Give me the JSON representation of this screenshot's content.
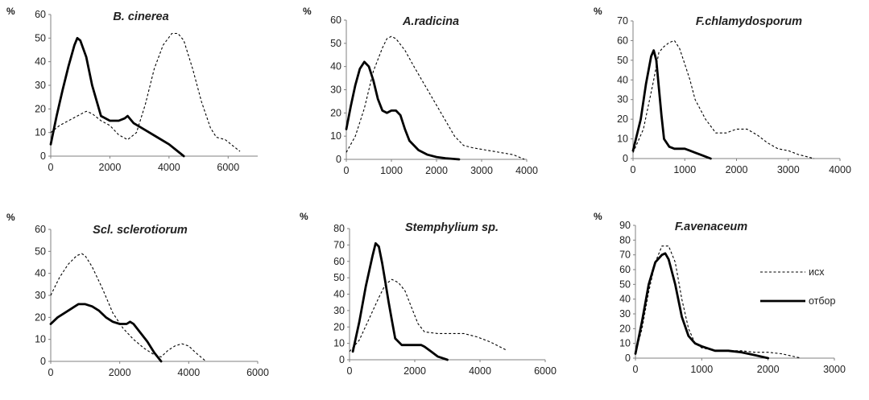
{
  "legend": {
    "items": [
      {
        "label": "исх",
        "style": "dotted"
      },
      {
        "label": "отбор",
        "style": "solid"
      }
    ]
  },
  "styles": {
    "line_color": "#000000",
    "background": "#ffffff"
  },
  "chart_data": [
    {
      "type": "line",
      "title": "B. cinerea",
      "ylabel": "%",
      "xlim": [
        0,
        7000
      ],
      "xticks": [
        0,
        2000,
        4000,
        6000
      ],
      "ylim": [
        0,
        60
      ],
      "yticks": [
        0,
        10,
        20,
        30,
        40,
        50,
        60
      ],
      "series": [
        {
          "name": "исх",
          "style": "dotted",
          "x": [
            0,
            300,
            600,
            900,
            1200,
            1400,
            1700,
            2000,
            2300,
            2600,
            2900,
            3200,
            3500,
            3800,
            4100,
            4300,
            4500,
            4800,
            5100,
            5400,
            5600,
            5900,
            6200,
            6400
          ],
          "y": [
            10,
            13,
            15,
            17,
            19,
            18,
            15,
            13,
            9,
            7,
            10,
            22,
            37,
            47,
            52,
            52,
            49,
            37,
            23,
            12,
            8,
            7,
            4,
            2
          ]
        },
        {
          "name": "отбор",
          "style": "solid",
          "x": [
            0,
            200,
            400,
            600,
            800,
            900,
            1000,
            1200,
            1400,
            1700,
            2000,
            2300,
            2500,
            2600,
            2800,
            3200,
            3600,
            4000,
            4300,
            4500
          ],
          "y": [
            5,
            17,
            28,
            38,
            47,
            50,
            49,
            42,
            30,
            17,
            15,
            15,
            16,
            17,
            14,
            11,
            8,
            5,
            2,
            0
          ]
        }
      ]
    },
    {
      "type": "line",
      "title": "A.radicina",
      "ylabel": "%",
      "xlim": [
        0,
        4000
      ],
      "xticks": [
        0,
        1000,
        2000,
        3000,
        4000
      ],
      "ylim": [
        0,
        60
      ],
      "yticks": [
        0,
        10,
        20,
        30,
        40,
        50,
        60
      ],
      "series": [
        {
          "name": "исх",
          "style": "dotted",
          "x": [
            0,
            200,
            400,
            600,
            800,
            900,
            1000,
            1100,
            1300,
            1500,
            1800,
            2100,
            2400,
            2600,
            2800,
            3100,
            3400,
            3700,
            3950
          ],
          "y": [
            3,
            10,
            22,
            38,
            48,
            52,
            53,
            52,
            47,
            40,
            30,
            20,
            10,
            6,
            5,
            4,
            3,
            2,
            0
          ]
        },
        {
          "name": "отбор",
          "style": "solid",
          "x": [
            0,
            100,
            200,
            300,
            400,
            500,
            600,
            700,
            800,
            900,
            1000,
            1100,
            1200,
            1300,
            1400,
            1600,
            1800,
            2000,
            2200,
            2500
          ],
          "y": [
            13,
            23,
            32,
            39,
            42,
            40,
            34,
            26,
            21,
            20,
            21,
            21,
            19,
            13,
            8,
            4,
            2,
            1,
            0.5,
            0
          ]
        }
      ]
    },
    {
      "type": "line",
      "title": "F.chlamydosporum",
      "ylabel": "%",
      "xlim": [
        0,
        4000
      ],
      "xticks": [
        0,
        1000,
        2000,
        3000,
        4000
      ],
      "ylim": [
        0,
        70
      ],
      "yticks": [
        0,
        10,
        20,
        30,
        40,
        50,
        60,
        70
      ],
      "series": [
        {
          "name": "исх",
          "style": "dotted",
          "x": [
            0,
            200,
            400,
            500,
            600,
            700,
            800,
            900,
            1000,
            1100,
            1200,
            1400,
            1600,
            1800,
            2000,
            2200,
            2400,
            2600,
            2800,
            3000,
            3200,
            3500
          ],
          "y": [
            3,
            15,
            40,
            54,
            57,
            59,
            60,
            56,
            48,
            40,
            30,
            20,
            13,
            13,
            15,
            15,
            12,
            8,
            5,
            4,
            2,
            0
          ]
        },
        {
          "name": "отбор",
          "style": "solid",
          "x": [
            0,
            150,
            250,
            350,
            400,
            450,
            500,
            550,
            600,
            700,
            800,
            900,
            1000,
            1100,
            1200,
            1300,
            1400,
            1500
          ],
          "y": [
            4,
            20,
            38,
            52,
            55,
            50,
            36,
            22,
            10,
            6,
            5,
            5,
            5,
            4,
            3,
            2,
            1,
            0
          ]
        }
      ]
    },
    {
      "type": "line",
      "title": "Scl. sclerotiorum",
      "ylabel": "%",
      "xlim": [
        0,
        6000
      ],
      "xticks": [
        0,
        2000,
        4000,
        6000
      ],
      "ylim": [
        0,
        60
      ],
      "yticks": [
        0,
        10,
        20,
        30,
        40,
        50,
        60
      ],
      "series": [
        {
          "name": "исх",
          "style": "dotted",
          "x": [
            0,
            250,
            500,
            750,
            900,
            1000,
            1200,
            1500,
            1800,
            2100,
            2400,
            2700,
            3000,
            3200,
            3400,
            3600,
            3800,
            4000,
            4200,
            4500
          ],
          "y": [
            30,
            38,
            44,
            48,
            49,
            48,
            43,
            33,
            22,
            15,
            10,
            6,
            3,
            2,
            5,
            7,
            8,
            7,
            4,
            0
          ]
        },
        {
          "name": "отбор",
          "style": "solid",
          "x": [
            0,
            200,
            400,
            600,
            800,
            1000,
            1200,
            1400,
            1600,
            1800,
            2000,
            2200,
            2300,
            2400,
            2600,
            2800,
            3000,
            3200
          ],
          "y": [
            17,
            20,
            22,
            24,
            26,
            26,
            25,
            23,
            20,
            18,
            17,
            17,
            18,
            17,
            13,
            9,
            4,
            0
          ]
        }
      ]
    },
    {
      "type": "line",
      "title": "Stemphylium sp.",
      "ylabel": "%",
      "xlim": [
        0,
        6000
      ],
      "xticks": [
        0,
        2000,
        4000,
        6000
      ],
      "ylim": [
        0,
        80
      ],
      "yticks": [
        0,
        10,
        20,
        30,
        40,
        50,
        60,
        70,
        80
      ],
      "series": [
        {
          "name": "исх",
          "style": "dotted",
          "x": [
            0,
            300,
            600,
            900,
            1100,
            1300,
            1500,
            1700,
            1900,
            2100,
            2300,
            2700,
            3100,
            3500,
            3900,
            4300,
            4600,
            4800
          ],
          "y": [
            5,
            12,
            25,
            38,
            46,
            49,
            47,
            42,
            32,
            22,
            17,
            16,
            16,
            16,
            14,
            11,
            8,
            6
          ]
        },
        {
          "name": "отбор",
          "style": "solid",
          "x": [
            100,
            300,
            500,
            700,
            800,
            900,
            1000,
            1100,
            1200,
            1300,
            1400,
            1600,
            1900,
            2200,
            2300,
            2500,
            2700,
            3000
          ],
          "y": [
            5,
            23,
            45,
            63,
            71,
            69,
            59,
            47,
            35,
            24,
            13,
            9,
            9,
            9,
            8,
            5,
            2,
            0
          ]
        }
      ]
    },
    {
      "type": "line",
      "title": "F.avenaceum",
      "ylabel": "%",
      "xlim": [
        0,
        3000
      ],
      "xticks": [
        0,
        1000,
        2000,
        3000
      ],
      "ylim": [
        0,
        90
      ],
      "yticks": [
        0,
        10,
        20,
        30,
        40,
        50,
        60,
        70,
        80,
        90
      ],
      "series": [
        {
          "name": "исх",
          "style": "dotted",
          "x": [
            0,
            100,
            200,
            300,
            400,
            500,
            600,
            700,
            800,
            900,
            1000,
            1200,
            1400,
            1600,
            1800,
            2000,
            2200,
            2500
          ],
          "y": [
            3,
            20,
            45,
            65,
            76,
            76,
            65,
            40,
            20,
            10,
            7,
            5,
            5,
            5,
            4,
            4,
            3,
            0
          ]
        },
        {
          "name": "отбор",
          "style": "solid",
          "x": [
            0,
            100,
            200,
            300,
            400,
            450,
            500,
            600,
            700,
            800,
            900,
            1000,
            1200,
            1400,
            1600,
            1800,
            2000
          ],
          "y": [
            3,
            25,
            50,
            65,
            70,
            71,
            67,
            50,
            28,
            15,
            10,
            8,
            5,
            5,
            4,
            2,
            0
          ]
        }
      ]
    }
  ]
}
